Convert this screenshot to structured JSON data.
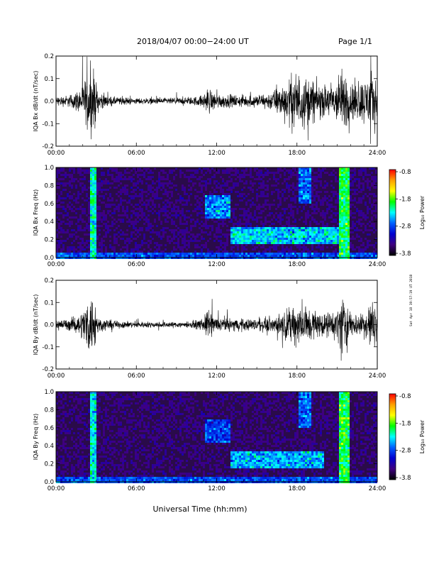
{
  "header": {
    "title": "2018/04/07  00:00−24:00 UT",
    "page": "Page 1/1"
  },
  "xlabel": "Universal Time (hh:mm)",
  "stamp": "Sat Apr 18 19:57:19 UT 2018",
  "colorbar": {
    "ticks": [
      "-0.8",
      "-1.8",
      "-2.8",
      "-3.8"
    ],
    "label": "Log₁₀ Power",
    "colors": [
      "#ff0000",
      "#ffa000",
      "#ffff00",
      "#00ff00",
      "#00ffff",
      "#0060ff",
      "#0000d0",
      "#400080",
      "#000000"
    ]
  },
  "chart_data": [
    {
      "type": "line",
      "title": "",
      "ylabel": "IQA Bx dB/dt (nT/sec)",
      "xlabel": "",
      "xticks": [
        "00:00",
        "06:00",
        "12:00",
        "18:00",
        "24:00"
      ],
      "xlim": [
        0,
        24
      ],
      "yticks": [
        "0.2",
        "0.1",
        "0.0",
        "-0.1",
        "-0.2"
      ],
      "ylim": [
        -0.2,
        0.2
      ],
      "envelope": {
        "x": [
          0,
          1,
          1.8,
          2.5,
          2.8,
          3.2,
          4,
          6,
          8,
          10,
          11,
          11.3,
          12,
          13,
          15,
          16,
          17,
          18,
          19,
          20,
          21,
          21.3,
          21.6,
          22,
          23,
          23.5,
          24
        ],
        "amplitude": [
          0.03,
          0.04,
          0.08,
          0.2,
          0.2,
          0.06,
          0.03,
          0.02,
          0.02,
          0.025,
          0.04,
          0.09,
          0.05,
          0.04,
          0.04,
          0.06,
          0.12,
          0.2,
          0.15,
          0.1,
          0.15,
          0.2,
          0.2,
          0.12,
          0.15,
          0.2,
          0.15
        ]
      }
    },
    {
      "type": "heatmap",
      "title": "",
      "ylabel": "IQA Bx Freq (Hz)",
      "xticks": [
        "00:00",
        "06:00",
        "12:00",
        "18:00",
        "24:00"
      ],
      "xlim": [
        0,
        24
      ],
      "yticks": [
        "1.0",
        "0.8",
        "0.6",
        "0.4",
        "0.2",
        "0.0"
      ],
      "ylim": [
        0,
        1
      ],
      "zlabel": "Log10 Power",
      "zlim": [
        -3.8,
        -0.8
      ],
      "features": [
        {
          "x": [
            11.0,
            13.0
          ],
          "y": [
            0.45,
            0.7
          ],
          "level": -2.6
        },
        {
          "x": [
            13.0,
            21.0
          ],
          "y": [
            0.15,
            0.35
          ],
          "level": -2.4
        },
        {
          "x": [
            18.0,
            19.0
          ],
          "y": [
            0.6,
            1.0
          ],
          "level": -2.7
        },
        {
          "x": [
            2.5,
            3.0
          ],
          "y": [
            0.0,
            1.0
          ],
          "level": -2.2
        },
        {
          "x": [
            21.0,
            21.8
          ],
          "y": [
            0.0,
            1.0
          ],
          "level": -2.0
        }
      ]
    },
    {
      "type": "line",
      "title": "",
      "ylabel": "IQA By dB/dt (nT/sec)",
      "xticks": [
        "00:00",
        "06:00",
        "12:00",
        "18:00",
        "24:00"
      ],
      "xlim": [
        0,
        24
      ],
      "yticks": [
        "0.2",
        "0.1",
        "0.0",
        "-0.1",
        "-0.2"
      ],
      "ylim": [
        -0.2,
        0.2
      ],
      "envelope": {
        "x": [
          0,
          1,
          1.8,
          2.5,
          2.8,
          3.2,
          4,
          6,
          8,
          10,
          11,
          11.3,
          12,
          13,
          15,
          16,
          17,
          18,
          19,
          20,
          21,
          21.3,
          21.6,
          22,
          23,
          23.5,
          24
        ],
        "amplitude": [
          0.03,
          0.04,
          0.07,
          0.2,
          0.2,
          0.05,
          0.03,
          0.02,
          0.02,
          0.02,
          0.04,
          0.1,
          0.05,
          0.04,
          0.04,
          0.05,
          0.08,
          0.15,
          0.12,
          0.07,
          0.1,
          0.2,
          0.2,
          0.08,
          0.08,
          0.18,
          0.1
        ]
      }
    },
    {
      "type": "heatmap",
      "title": "",
      "ylabel": "IQA By Freq (Hz)",
      "xticks": [
        "00:00",
        "06:00",
        "12:00",
        "18:00",
        "24:00"
      ],
      "xlim": [
        0,
        24
      ],
      "yticks": [
        "1.0",
        "0.8",
        "0.6",
        "0.4",
        "0.2",
        "0.0"
      ],
      "ylim": [
        0,
        1
      ],
      "zlabel": "Log10 Power",
      "zlim": [
        -3.8,
        -0.8
      ],
      "features": [
        {
          "x": [
            11.0,
            13.0
          ],
          "y": [
            0.45,
            0.7
          ],
          "level": -2.8
        },
        {
          "x": [
            13.0,
            20.0
          ],
          "y": [
            0.15,
            0.35
          ],
          "level": -2.5
        },
        {
          "x": [
            18.0,
            19.0
          ],
          "y": [
            0.6,
            1.0
          ],
          "level": -2.7
        },
        {
          "x": [
            2.5,
            3.0
          ],
          "y": [
            0.0,
            1.0
          ],
          "level": -2.3
        },
        {
          "x": [
            21.0,
            21.8
          ],
          "y": [
            0.0,
            1.0
          ],
          "level": -2.0
        }
      ]
    }
  ]
}
